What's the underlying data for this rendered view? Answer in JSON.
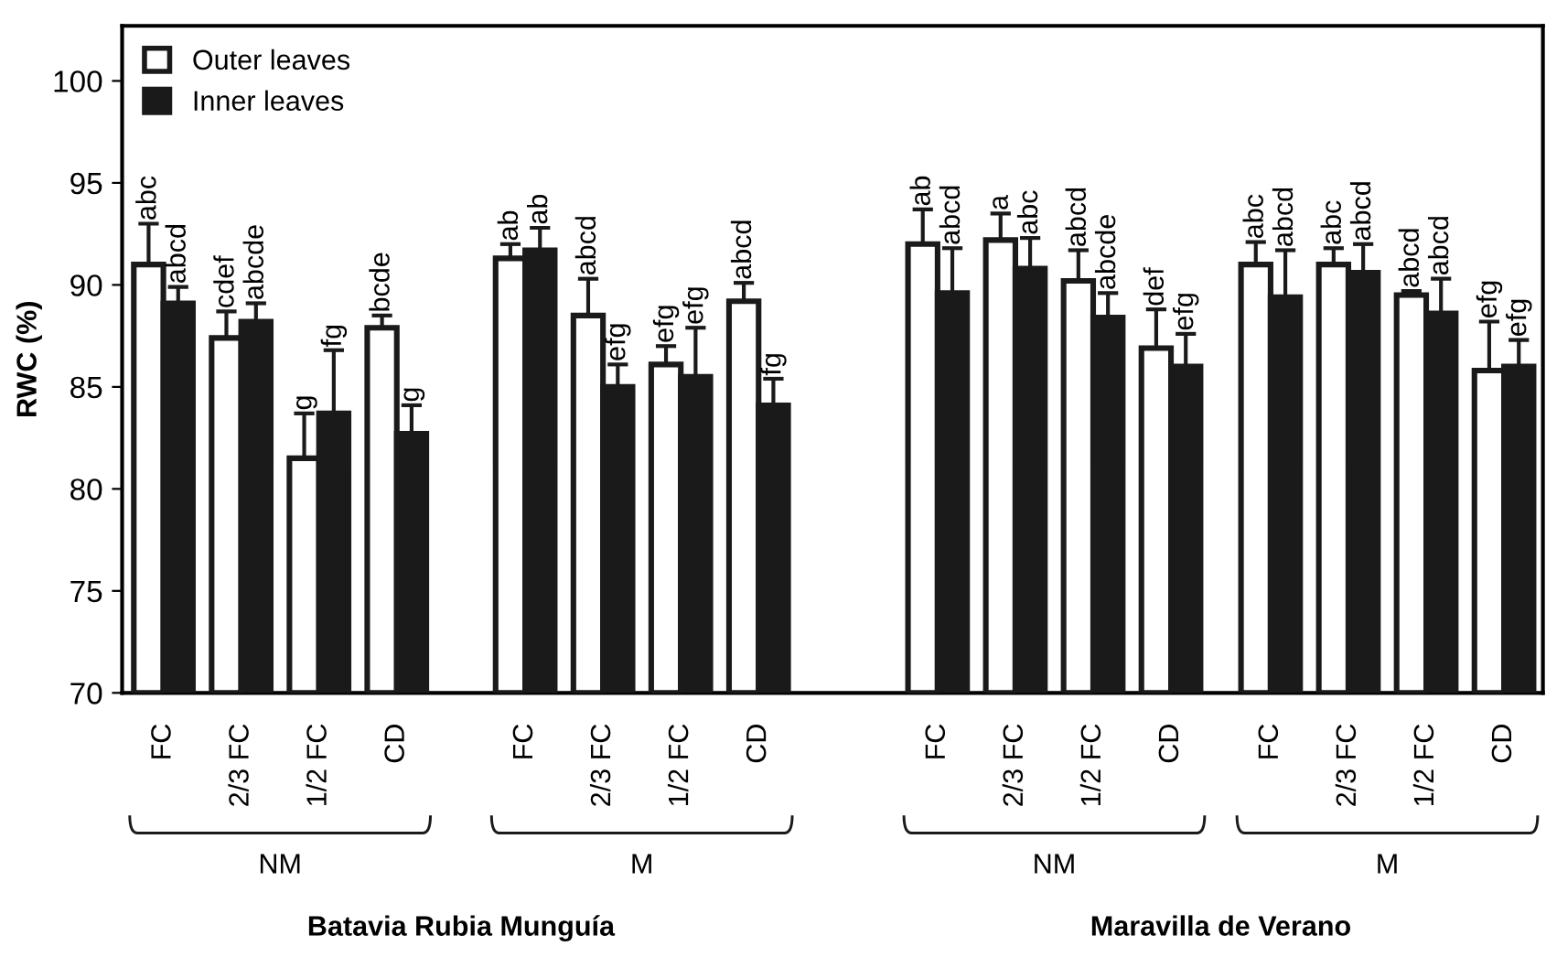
{
  "chart_data": {
    "type": "bar",
    "ylabel": "RWC (%)",
    "categories": [
      "FC",
      "2/3 FC",
      "1/2 FC",
      "CD",
      "FC",
      "2/3 FC",
      "1/2 FC",
      "CD",
      "FC",
      "2/3 FC",
      "1/2 FC",
      "CD",
      "FC",
      "2/3 FC",
      "1/2 FC",
      "CD"
    ],
    "series": [
      {
        "name": "Outer leaves",
        "color": "#ffffff",
        "values": [
          91.0,
          87.4,
          81.5,
          87.9,
          91.3,
          88.5,
          86.1,
          89.2,
          92.0,
          92.2,
          90.2,
          86.9,
          91.0,
          91.0,
          89.5,
          85.8
        ],
        "errors": [
          2.0,
          1.3,
          2.2,
          0.6,
          0.7,
          1.8,
          0.9,
          0.9,
          1.7,
          1.3,
          1.5,
          1.9,
          1.1,
          0.8,
          0.2,
          2.4
        ],
        "value_labels": [
          "abc",
          "cdef",
          "g",
          "bcde",
          "ab",
          "abcd",
          "efg",
          "abcd",
          "ab",
          "a",
          "abcd",
          "def",
          "abc",
          "abc",
          "abcd",
          "efg"
        ]
      },
      {
        "name": "Inner leaves",
        "color": "#1a1a1a",
        "values": [
          89.1,
          88.2,
          83.7,
          82.7,
          91.7,
          85.0,
          85.5,
          84.1,
          89.6,
          90.8,
          88.4,
          86.0,
          89.4,
          90.6,
          88.6,
          86.0
        ],
        "errors": [
          0.8,
          0.9,
          3.1,
          1.4,
          1.1,
          1.1,
          2.4,
          1.3,
          2.2,
          1.5,
          1.2,
          1.6,
          2.3,
          1.4,
          1.7,
          1.3
        ],
        "value_labels": [
          "abcd",
          "abcde",
          "fg",
          "g",
          "ab",
          "efg",
          "efg",
          "fg",
          "abcd",
          "abc",
          "abcde",
          "efg",
          "abcd",
          "abcd",
          "abcd",
          "efg"
        ]
      }
    ],
    "ylim": [
      70,
      102.7
    ],
    "yticks": [
      70,
      75,
      80,
      85,
      90,
      95,
      100
    ],
    "annotations": [
      "NM",
      "M",
      "NM",
      "M",
      "Batavia Rubia Munguía",
      "Maravilla de Verano"
    ],
    "legend": "top left",
    "grid": false
  }
}
